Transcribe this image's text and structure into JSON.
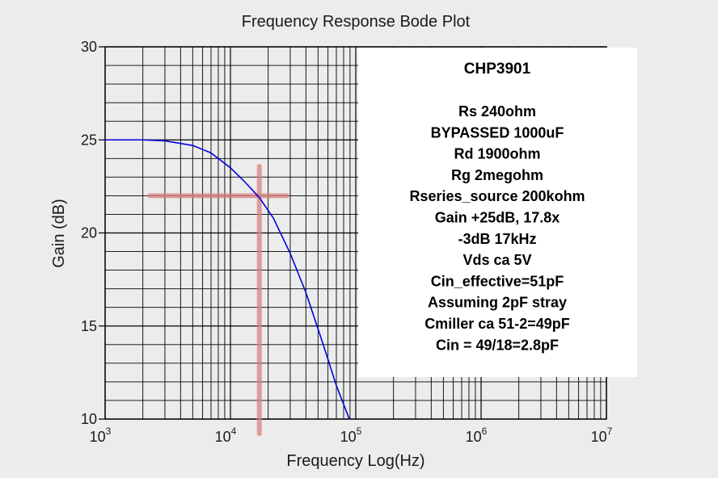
{
  "chart_data": {
    "type": "line",
    "title": "Frequency Response Bode Plot",
    "xlabel": "Frequency Log(Hz)",
    "ylabel": "Gain (dB)",
    "xscale": "log",
    "xlim": [
      1000,
      10000000
    ],
    "ylim": [
      10,
      30
    ],
    "xticks": [
      1000,
      10000,
      100000,
      1000000,
      10000000
    ],
    "xtick_labels": [
      {
        "base": "10",
        "exp": "3"
      },
      {
        "base": "10",
        "exp": "4"
      },
      {
        "base": "10",
        "exp": "5"
      },
      {
        "base": "10",
        "exp": "6"
      },
      {
        "base": "10",
        "exp": "7"
      }
    ],
    "yticks": [
      10,
      15,
      20,
      25,
      30
    ],
    "ytick_labels": [
      "10",
      "15",
      "20",
      "25",
      "30"
    ],
    "grid": true,
    "series": [
      {
        "color": "#0000dd",
        "x": [
          1000,
          2000,
          3000,
          5000,
          7000,
          10000,
          13000,
          17000,
          22000,
          30000,
          40000,
          55000,
          70000,
          90000
        ],
        "y": [
          25.0,
          25.0,
          24.95,
          24.7,
          24.3,
          23.5,
          22.75,
          21.9,
          20.8,
          18.9,
          16.8,
          14.0,
          11.8,
          9.9
        ]
      }
    ],
    "marker_lines": {
      "color": "#d98282",
      "x": 17000,
      "y": 22.0
    },
    "annotation": {
      "title": "CHP3901",
      "lines": [
        "Rs 240ohm",
        "BYPASSED 1000uF",
        "Rd 1900ohm",
        "Rg 2megohm",
        "Rseries_source 200kohm",
        "Gain +25dB, 17.8x",
        "-3dB 17kHz",
        "Vds ca 5V",
        "Cin_effective=51pF",
        "Assuming 2pF stray",
        "Cmiller ca 51-2=49pF",
        "Cin = 49/18=2.8pF"
      ]
    },
    "colors": {
      "background": "#ececec",
      "ylabel": "#0000cc"
    }
  }
}
